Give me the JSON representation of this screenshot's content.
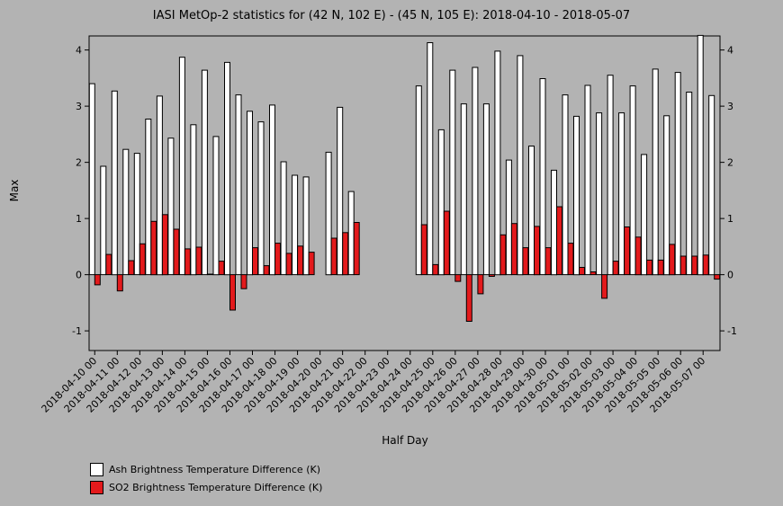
{
  "chart_data": {
    "type": "bar",
    "title": "IASI MetOp-2 statistics for (42 N, 102 E) - (45 N, 105 E): 2018-04-10 - 2018-05-07",
    "xlabel": "Half Day",
    "ylabel": "Max",
    "ylim": [
      -1.35,
      4.25
    ],
    "yticks": [
      -1,
      0,
      1,
      2,
      3,
      4
    ],
    "categories": [
      "2018-04-10 00",
      "2018-04-10 12",
      "2018-04-11 00",
      "2018-04-11 12",
      "2018-04-12 00",
      "2018-04-12 12",
      "2018-04-13 00",
      "2018-04-13 12",
      "2018-04-14 00",
      "2018-04-14 12",
      "2018-04-15 00",
      "2018-04-15 12",
      "2018-04-16 00",
      "2018-04-16 12",
      "2018-04-17 00",
      "2018-04-17 12",
      "2018-04-18 00",
      "2018-04-18 12",
      "2018-04-19 00",
      "2018-04-19 12",
      "2018-04-20 00",
      "2018-04-20 12",
      "2018-04-21 00",
      "2018-04-21 12",
      "2018-04-22 00",
      "2018-04-22 12",
      "2018-04-23 00",
      "2018-04-23 12",
      "2018-04-24 00",
      "2018-04-24 12",
      "2018-04-25 00",
      "2018-04-25 12",
      "2018-04-26 00",
      "2018-04-26 12",
      "2018-04-27 00",
      "2018-04-27 12",
      "2018-04-28 00",
      "2018-04-28 12",
      "2018-04-29 00",
      "2018-04-29 12",
      "2018-04-30 00",
      "2018-04-30 12",
      "2018-05-01 00",
      "2018-05-01 12",
      "2018-05-02 00",
      "2018-05-02 12",
      "2018-05-03 00",
      "2018-05-03 12",
      "2018-05-04 00",
      "2018-05-04 12",
      "2018-05-05 00",
      "2018-05-05 12",
      "2018-05-06 00",
      "2018-05-06 12",
      "2018-05-07 00",
      "2018-05-07 12"
    ],
    "tick_labels": [
      "2018-04-10 00",
      "2018-04-11 00",
      "2018-04-12 00",
      "2018-04-13 00",
      "2018-04-14 00",
      "2018-04-15 00",
      "2018-04-16 00",
      "2018-04-17 00",
      "2018-04-18 00",
      "2018-04-19 00",
      "2018-04-20 00",
      "2018-04-21 00",
      "2018-04-22 00",
      "2018-04-23 00",
      "2018-04-24 00",
      "2018-04-25 00",
      "2018-04-26 00",
      "2018-04-27 00",
      "2018-04-28 00",
      "2018-04-29 00",
      "2018-04-30 00",
      "2018-05-01 00",
      "2018-05-02 00",
      "2018-05-03 00",
      "2018-05-04 00",
      "2018-05-05 00",
      "2018-05-06 00",
      "2018-05-07 00"
    ],
    "series": [
      {
        "name": "Ash Brightness Temperature Difference (K)",
        "color": "#ffffff",
        "values": [
          3.4,
          1.93,
          3.27,
          2.23,
          2.16,
          2.77,
          3.18,
          2.43,
          3.87,
          2.67,
          3.64,
          2.46,
          3.78,
          3.2,
          2.91,
          2.72,
          3.02,
          2.01,
          1.77,
          1.74,
          null,
          2.18,
          2.98,
          1.48,
          null,
          null,
          null,
          null,
          null,
          3.36,
          4.13,
          2.58,
          3.64,
          3.04,
          3.69,
          3.04,
          3.98,
          2.04,
          3.9,
          2.29,
          3.49,
          1.86,
          3.2,
          2.82,
          3.37,
          2.88,
          3.55,
          2.88,
          3.36,
          2.14,
          3.66,
          2.83,
          3.6,
          3.25,
          4.26,
          3.19
        ]
      },
      {
        "name": "SO2 Brightness Temperature Difference (K)",
        "color": "#e31a1c",
        "values": [
          -0.18,
          0.36,
          -0.29,
          0.25,
          0.55,
          0.95,
          1.07,
          0.81,
          0.46,
          0.49,
          0.01,
          0.24,
          -0.63,
          -0.25,
          0.48,
          0.16,
          0.56,
          0.38,
          0.51,
          0.4,
          null,
          0.65,
          0.75,
          0.93,
          null,
          null,
          null,
          null,
          null,
          0.89,
          0.18,
          1.13,
          -0.12,
          -0.83,
          -0.34,
          -0.03,
          0.71,
          0.91,
          0.48,
          0.86,
          0.48,
          1.21,
          0.56,
          0.13,
          0.05,
          -0.42,
          0.24,
          0.85,
          0.67,
          0.26,
          0.26,
          0.54,
          0.33,
          0.33,
          0.35,
          -0.08
        ]
      }
    ],
    "legend": "bottom-left",
    "grid": false
  }
}
